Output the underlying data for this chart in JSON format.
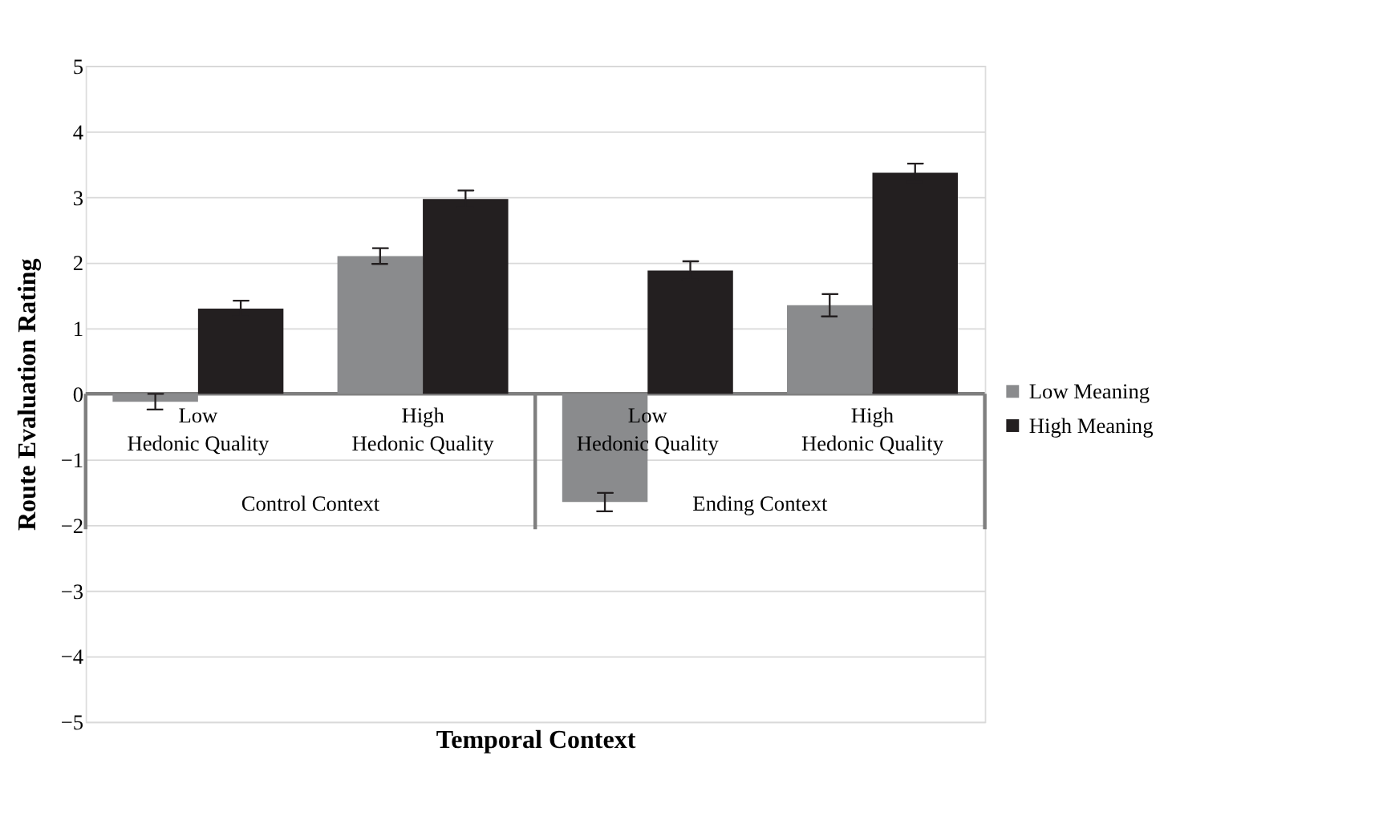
{
  "chart_data": {
    "type": "bar",
    "xlabel": "Temporal Context",
    "ylabel": "Route Evaluation Rating",
    "categories": [
      "Low Hedonic Quality",
      "High Hedonic Quality",
      "Low Hedonic Quality",
      "High Hedonic Quality"
    ],
    "series": [
      {
        "name": "Low Meaning",
        "color": "#8a8b8d",
        "values": [
          -0.12,
          2.1,
          -1.65,
          1.35
        ],
        "errors": [
          0.12,
          0.12,
          0.14,
          0.17
        ]
      },
      {
        "name": "High Meaning",
        "color": "#231f20",
        "values": [
          1.3,
          2.97,
          1.88,
          3.37
        ],
        "errors": [
          0.12,
          0.13,
          0.14,
          0.14
        ]
      }
    ],
    "annotations": [
      "Control Context",
      "Ending Context"
    ],
    "ylim": [
      -5,
      5
    ],
    "yticks": [
      -5,
      -4,
      -3,
      -2,
      -1,
      0,
      1,
      2,
      3,
      4,
      5
    ],
    "grid": "y",
    "legend": "right"
  }
}
